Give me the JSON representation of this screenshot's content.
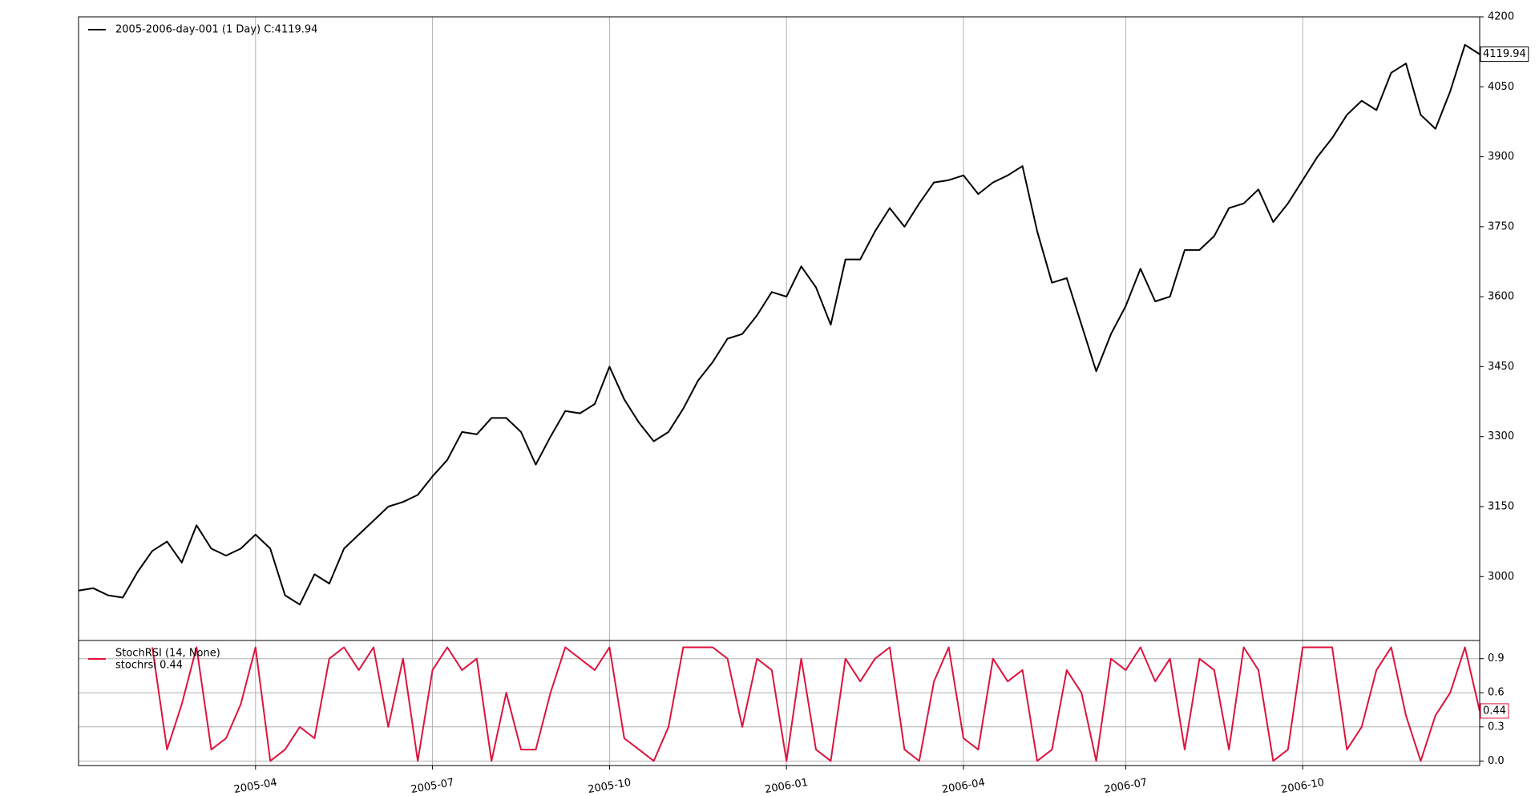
{
  "chart_data": [
    {
      "type": "line",
      "series": [
        {
          "name": "2005-2006-day-001 (1 Day) C:4119.94",
          "color": "#000000",
          "values": [
            2970,
            2975,
            2960,
            2955,
            3010,
            3055,
            3075,
            3030,
            3110,
            3060,
            3045,
            3060,
            3090,
            3060,
            2960,
            2940,
            3005,
            2985,
            3060,
            3090,
            3120,
            3150,
            3160,
            3175,
            3215,
            3250,
            3310,
            3305,
            3340,
            3340,
            3310,
            3240,
            3300,
            3355,
            3350,
            3370,
            3450,
            3380,
            3330,
            3290,
            3310,
            3360,
            3420,
            3460,
            3510,
            3520,
            3560,
            3610,
            3600,
            3665,
            3620,
            3540,
            3680,
            3680,
            3740,
            3790,
            3750,
            3800,
            3845,
            3850,
            3860,
            3820,
            3845,
            3860,
            3880,
            3740,
            3630,
            3640,
            3540,
            3440,
            3520,
            3580,
            3660,
            3590,
            3600,
            3700,
            3700,
            3730,
            3790,
            3800,
            3830,
            3760,
            3800,
            3850,
            3900,
            3940,
            3990,
            4020,
            4000,
            4080,
            4100,
            3990,
            3960,
            4040,
            4140,
            4119.94
          ]
        }
      ],
      "ylim": [
        2863,
        4200
      ],
      "yticks": [
        3000,
        3150,
        3300,
        3450,
        3600,
        3750,
        3900,
        4050,
        4200
      ],
      "xgrid": true,
      "ygrid": false,
      "legend": "upper left"
    },
    {
      "type": "line",
      "title": "StochRSI (14, None)",
      "categories": [
        null,
        null,
        null,
        null,
        null,
        null,
        null,
        null,
        null,
        null,
        null,
        null,
        "2005-04",
        null,
        null,
        null,
        null,
        null,
        null,
        null,
        null,
        null,
        null,
        null,
        "2005-07",
        null,
        null,
        null,
        null,
        null,
        null,
        null,
        null,
        null,
        null,
        null,
        "2005-10",
        null,
        null,
        null,
        null,
        null,
        null,
        null,
        null,
        null,
        null,
        null,
        "2006-01",
        null,
        null,
        null,
        null,
        null,
        null,
        null,
        null,
        null,
        null,
        null,
        "2006-04",
        null,
        null,
        null,
        null,
        null,
        null,
        null,
        null,
        null,
        null,
        "2006-07",
        null,
        null,
        null,
        null,
        null,
        null,
        null,
        null,
        null,
        null,
        null,
        "2006-10",
        null,
        null,
        null,
        null,
        null,
        null,
        null,
        null,
        null,
        null,
        null,
        null
      ],
      "series": [
        {
          "name": "stochrsi 0.44",
          "color": "#dc143c",
          "values": [
            null,
            null,
            null,
            null,
            null,
            1.0,
            0.1,
            0.5,
            1.0,
            0.1,
            0.2,
            0.5,
            1.0,
            0.0,
            0.1,
            0.3,
            0.2,
            0.9,
            1.0,
            0.8,
            1.0,
            0.3,
            0.9,
            0.0,
            0.8,
            1.0,
            0.8,
            0.9,
            0.0,
            0.6,
            0.1,
            0.1,
            0.6,
            1.0,
            0.9,
            0.8,
            1.0,
            0.2,
            0.1,
            0.0,
            0.3,
            1.0,
            1.0,
            1.0,
            0.9,
            0.3,
            0.9,
            0.8,
            0.0,
            0.9,
            0.1,
            0.0,
            0.9,
            0.7,
            0.9,
            1.0,
            0.1,
            0.0,
            0.7,
            1.0,
            0.2,
            0.1,
            0.9,
            0.7,
            0.8,
            0.0,
            0.1,
            0.8,
            0.6,
            0.0,
            0.9,
            0.8,
            1.0,
            0.7,
            0.9,
            0.1,
            0.9,
            0.8,
            0.1,
            1.0,
            0.8,
            0.0,
            0.1,
            1.0,
            1.0,
            1.0,
            0.1,
            0.3,
            0.8,
            1.0,
            0.4,
            0.0,
            0.4,
            0.6,
            1.0,
            0.44
          ]
        }
      ],
      "ylim": [
        -0.04,
        1.06
      ],
      "yticks": [
        {
          "value": 0,
          "label": "0.0"
        },
        0.3,
        0.6,
        0.9
      ],
      "xgrid": true,
      "ygrid": true,
      "legend": "upper left"
    }
  ]
}
